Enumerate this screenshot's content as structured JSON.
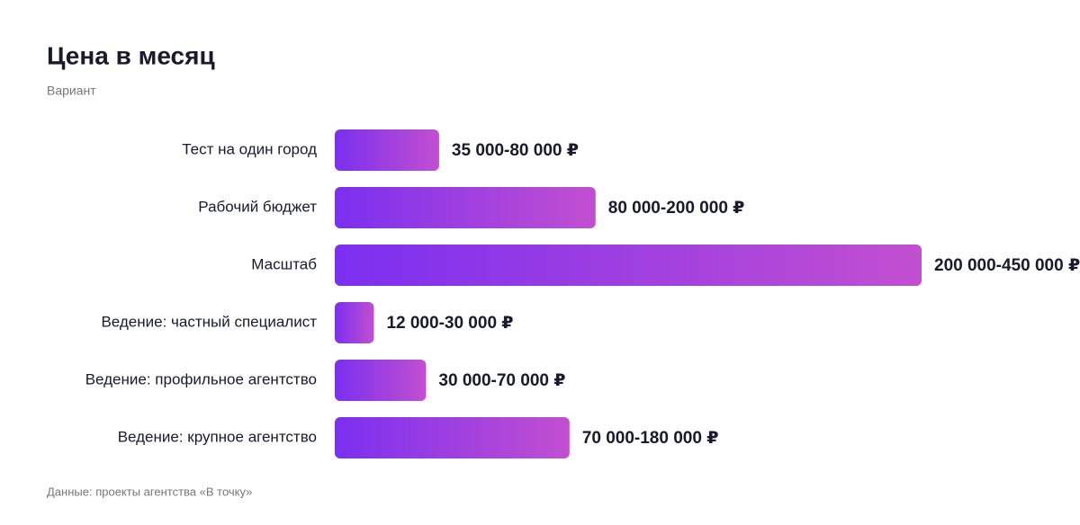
{
  "chart_data": {
    "type": "bar",
    "orientation": "horizontal",
    "title": "Цена в месяц",
    "subtitle": "Вариант",
    "categories": [
      "Тест на один город",
      "Рабочий бюджет",
      "Масштаб",
      "Ведение: частный специалист",
      "Ведение: профильное агентство",
      "Ведение: крупное агентство"
    ],
    "series": [
      {
        "name": "min",
        "values": [
          35000,
          80000,
          200000,
          12000,
          30000,
          70000
        ]
      },
      {
        "name": "max",
        "values": [
          80000,
          200000,
          450000,
          30000,
          70000,
          180000
        ]
      }
    ],
    "value_labels": [
      "35 000-80 000 ₽",
      "80 000-200 000 ₽",
      "200 000-450 000 ₽",
      "12 000-30 000 ₽",
      "30 000-70 000 ₽",
      "70 000-180 000 ₽"
    ],
    "colors": [
      "#7b2ff0",
      "#c24fd0"
    ],
    "source": "Данные: проекты агентства «В точку»"
  }
}
